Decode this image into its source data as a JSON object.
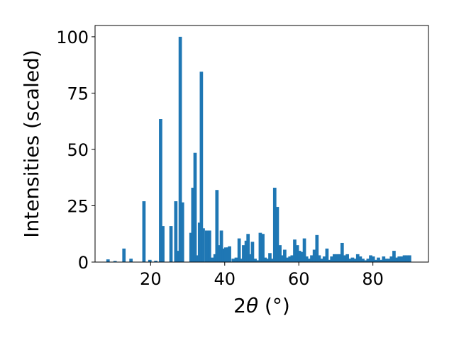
{
  "chart_data": {
    "type": "bar",
    "xlabel": "2θ (°)",
    "xlabel_base": "2",
    "xlabel_symbol": "θ",
    "xlabel_unit": " (°)",
    "ylabel": "Intensities (scaled)",
    "xlim": [
      5,
      95
    ],
    "ylim": [
      0,
      105
    ],
    "xticks": [
      20,
      40,
      60,
      80
    ],
    "yticks": [
      0,
      25,
      50,
      75,
      100
    ],
    "bar_color": "#1f77b4",
    "bar_width": 0.9,
    "x": [
      8.5,
      10.4,
      12.8,
      14.7,
      18.2,
      19.8,
      21.4,
      22.7,
      23.3,
      25.5,
      26.8,
      27.4,
      28.0,
      28.6,
      30.9,
      31.4,
      32.0,
      32.6,
      33.2,
      33.7,
      34.2,
      35.1,
      35.9,
      36.6,
      37.4,
      37.9,
      38.4,
      39.1,
      39.7,
      40.3,
      40.9,
      41.3,
      42.3,
      43.1,
      43.9,
      44.5,
      45.1,
      45.8,
      46.3,
      46.9,
      47.5,
      48.2,
      48.8,
      49.6,
      50.3,
      50.9,
      51.5,
      52.2,
      52.9,
      53.5,
      54.2,
      54.9,
      55.5,
      56.2,
      56.9,
      57.6,
      58.2,
      58.9,
      59.6,
      60.2,
      60.9,
      61.5,
      62.1,
      62.8,
      63.5,
      64.2,
      64.9,
      65.5,
      66.2,
      66.9,
      67.6,
      68.3,
      68.9,
      69.6,
      70.3,
      71.0,
      71.7,
      72.4,
      73.1,
      73.8,
      74.5,
      75.2,
      75.9,
      76.6,
      77.3,
      78.0,
      78.7,
      79.4,
      80.1,
      80.8,
      81.5,
      82.2,
      82.9,
      83.6,
      84.3,
      85.0,
      85.7,
      86.4,
      87.1,
      87.8,
      88.5,
      89.2,
      89.9
    ],
    "values": [
      1.2,
      0.5,
      6.0,
      1.5,
      27.0,
      1.0,
      0.6,
      63.5,
      16.0,
      16.0,
      27.0,
      5.0,
      100.0,
      26.5,
      13.0,
      33.0,
      48.5,
      3.0,
      17.5,
      84.5,
      15.0,
      14.0,
      14.0,
      2.0,
      3.5,
      32.0,
      7.5,
      14.0,
      6.0,
      6.5,
      6.5,
      7.0,
      1.5,
      2.0,
      10.5,
      1.5,
      7.5,
      9.5,
      12.5,
      3.5,
      9.0,
      1.5,
      0.8,
      13.0,
      12.5,
      2.0,
      1.5,
      4.0,
      1.5,
      33.0,
      24.5,
      7.5,
      3.0,
      5.5,
      2.0,
      2.5,
      3.0,
      10.0,
      7.5,
      5.0,
      4.5,
      10.5,
      2.5,
      1.5,
      3.0,
      5.5,
      12.0,
      3.0,
      1.5,
      2.5,
      6.0,
      1.0,
      2.5,
      3.5,
      3.5,
      3.5,
      8.5,
      3.0,
      3.5,
      1.5,
      2.0,
      1.5,
      3.5,
      2.5,
      1.5,
      0.8,
      1.5,
      3.0,
      2.5,
      1.0,
      2.0,
      1.0,
      2.5,
      1.5,
      1.5,
      2.5,
      5.0,
      2.0,
      2.5,
      2.5,
      3.0,
      3.0,
      3.0
    ]
  }
}
